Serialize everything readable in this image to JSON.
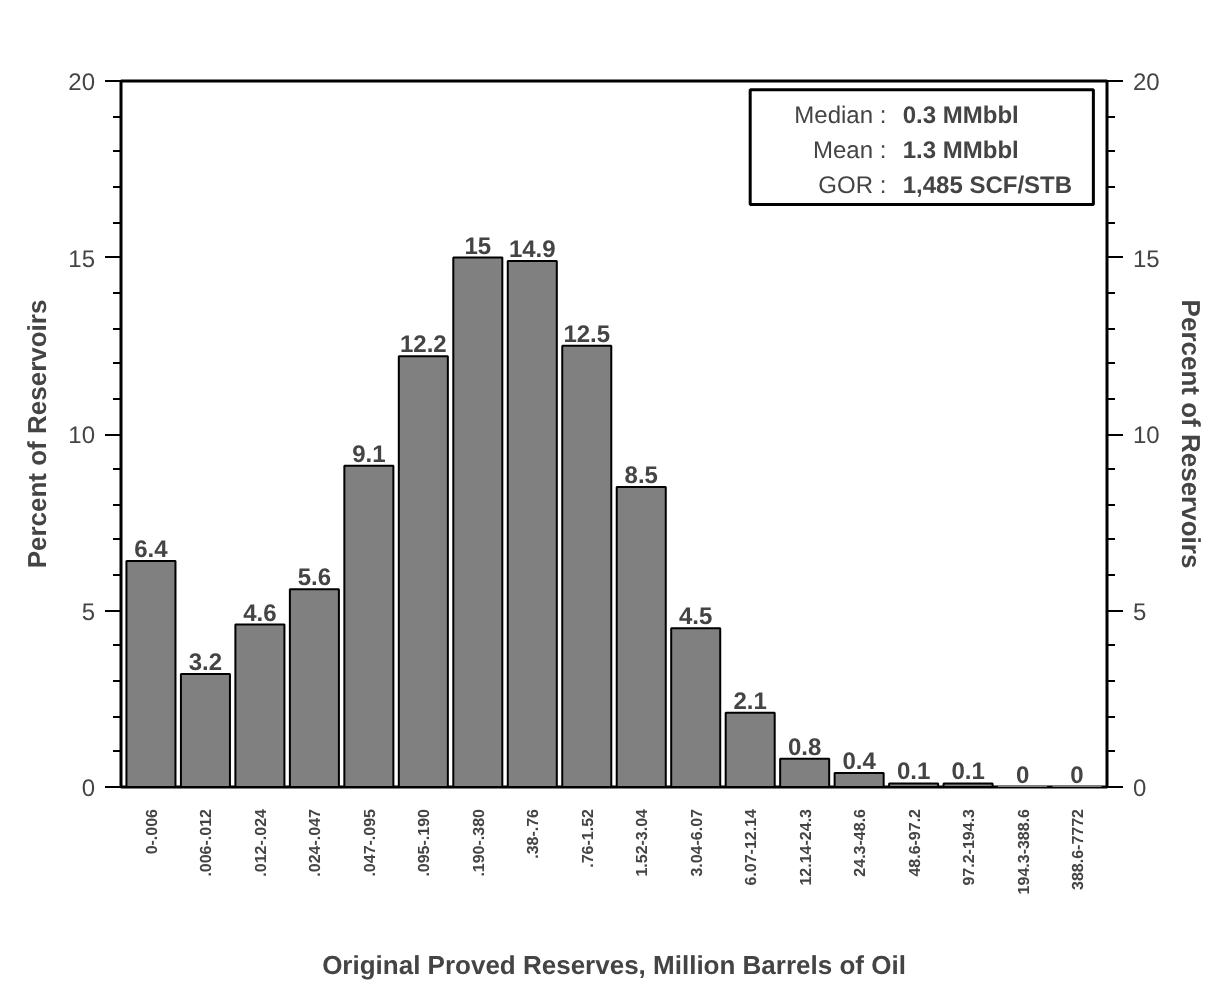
{
  "chart_data": {
    "type": "bar",
    "categories": [
      "0-.006",
      ".006-.012",
      ".012-.024",
      ".024-.047",
      ".047-.095",
      ".095-.190",
      ".190-.380",
      ".38-.76",
      ".76-1.52",
      "1.52-3.04",
      "3.04-6.07",
      "6.07-12.14",
      "12.14-24.3",
      "24.3-48.6",
      "48.6-97.2",
      "97.2-194.3",
      "194.3-388.6",
      "388.6-7772"
    ],
    "values": [
      6.4,
      3.2,
      4.6,
      5.6,
      9.1,
      12.2,
      15,
      14.9,
      12.5,
      8.5,
      4.5,
      2.1,
      0.8,
      0.4,
      0.1,
      0.1,
      0,
      0
    ],
    "color": "#808080",
    "data_labels": true,
    "xlabel": "Original Proved Reserves, Million Barrels of Oil",
    "ylabel": "Percent of Reservoirs",
    "y2label": "Percent of Reservoirs",
    "ylim": [
      0,
      20
    ],
    "yticks": [
      0,
      5,
      10,
      15,
      20
    ],
    "y2lim": [
      0,
      20
    ],
    "y2ticks": [
      0,
      5,
      10,
      15,
      20
    ],
    "annotations": [
      "Median :",
      "0.3 MMbbl",
      "Mean :",
      "1.3 MMbbl",
      "GOR :",
      "1,485 SCF/STB"
    ],
    "grid": false
  }
}
